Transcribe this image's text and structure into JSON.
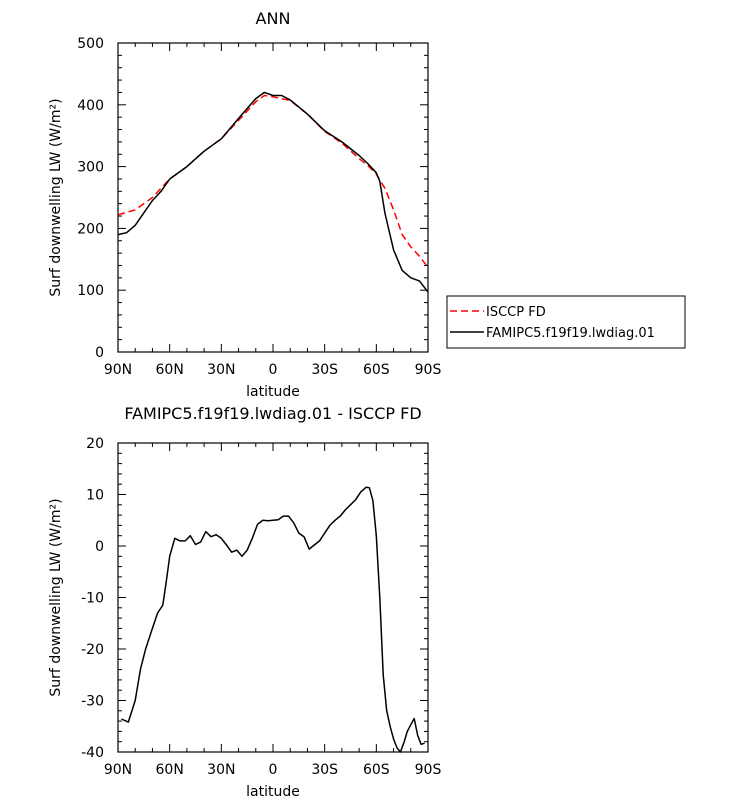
{
  "chart_data": [
    {
      "type": "line",
      "title": "ANN",
      "xlabel": "latitude",
      "ylabel": "Surf downwelling LW (W/m²)",
      "xlim": [
        -90,
        90
      ],
      "ylim": [
        0,
        500
      ],
      "x_tick_values": [
        -90,
        -60,
        -30,
        0,
        30,
        60,
        90
      ],
      "x_tick_labels": [
        "90N",
        "60N",
        "30N",
        "0",
        "30S",
        "60S",
        "90S"
      ],
      "y_tick_values": [
        0,
        100,
        200,
        300,
        400,
        500
      ],
      "y_tick_labels": [
        "0",
        "100",
        "200",
        "300",
        "400",
        "500"
      ],
      "grid": false,
      "legend_position": "right",
      "series": [
        {
          "name": "ISCCP FD",
          "color": "#ff0000",
          "style": "dashed",
          "x": [
            -90,
            -80,
            -70,
            -60,
            -50,
            -40,
            -30,
            -20,
            -10,
            -5,
            0,
            10,
            20,
            30,
            40,
            50,
            55,
            60,
            62,
            65,
            70,
            75,
            80,
            85,
            90
          ],
          "y": [
            222,
            230,
            250,
            280,
            300,
            325,
            345,
            375,
            405,
            415,
            413,
            407,
            385,
            357,
            338,
            313,
            302,
            288,
            278,
            265,
            230,
            190,
            170,
            155,
            137
          ]
        },
        {
          "name": "FAMIPC5.f19f19.lwdiag.01",
          "color": "#000000",
          "style": "solid",
          "x": [
            -90,
            -85,
            -80,
            -75,
            -70,
            -65,
            -60,
            -50,
            -40,
            -30,
            -20,
            -10,
            -5,
            0,
            5,
            10,
            20,
            30,
            40,
            50,
            55,
            60,
            62,
            65,
            70,
            75,
            80,
            85,
            90
          ],
          "y": [
            190,
            193,
            205,
            225,
            245,
            260,
            280,
            300,
            325,
            345,
            378,
            410,
            420,
            415,
            415,
            408,
            385,
            358,
            340,
            318,
            305,
            290,
            276,
            225,
            165,
            132,
            120,
            115,
            97
          ]
        }
      ]
    },
    {
      "type": "line",
      "title": "FAMIPC5.f19f19.lwdiag.01 - ISCCP FD",
      "xlabel": "latitude",
      "ylabel": "Surf downwelling LW (W/m²)",
      "xlim": [
        -90,
        90
      ],
      "ylim": [
        -40,
        20
      ],
      "x_tick_values": [
        -90,
        -60,
        -30,
        0,
        30,
        60,
        90
      ],
      "x_tick_labels": [
        "90N",
        "60N",
        "30N",
        "0",
        "30S",
        "60S",
        "90S"
      ],
      "y_tick_values": [
        -40,
        -30,
        -20,
        -10,
        0,
        10,
        20
      ],
      "y_tick_labels": [
        "-40",
        "-30",
        "-20",
        "-10",
        "0",
        "10",
        "20"
      ],
      "grid": false,
      "series": [
        {
          "color": "#000000",
          "style": "solid",
          "x": [
            -88,
            -84,
            -80,
            -77,
            -74,
            -70,
            -67,
            -64,
            -62,
            -60,
            -57,
            -54,
            -51,
            -48,
            -45,
            -42,
            -39,
            -36,
            -33,
            -30,
            -27,
            -24,
            -21,
            -18,
            -15,
            -12,
            -9,
            -6,
            -3,
            0,
            3,
            6,
            9,
            12,
            15,
            18,
            21,
            24,
            27,
            30,
            33,
            36,
            39,
            42,
            45,
            48,
            51,
            54,
            56,
            58,
            60,
            62,
            64,
            66,
            68,
            70,
            72,
            74,
            76,
            78,
            80,
            82,
            84,
            86,
            88
          ],
          "y": [
            -33.6,
            -34.2,
            -30,
            -24,
            -20,
            -16,
            -13,
            -11.5,
            -7,
            -2,
            1.5,
            1,
            1,
            2,
            0.3,
            0.8,
            2.8,
            1.8,
            2.2,
            1.5,
            0.2,
            -1.2,
            -0.8,
            -2,
            -0.8,
            1.5,
            4.2,
            5,
            4.9,
            5,
            5.1,
            5.8,
            5.8,
            4.5,
            2.5,
            1.8,
            -0.6,
            0.2,
            1,
            2.5,
            4,
            5,
            5.8,
            7,
            8,
            9,
            10.5,
            11.4,
            11.3,
            8.8,
            2,
            -10,
            -25,
            -32,
            -35,
            -37.5,
            -39.2,
            -40,
            -38.2,
            -36,
            -34.7,
            -33.5,
            -36.8,
            -38.5,
            -38.3
          ]
        }
      ]
    }
  ]
}
